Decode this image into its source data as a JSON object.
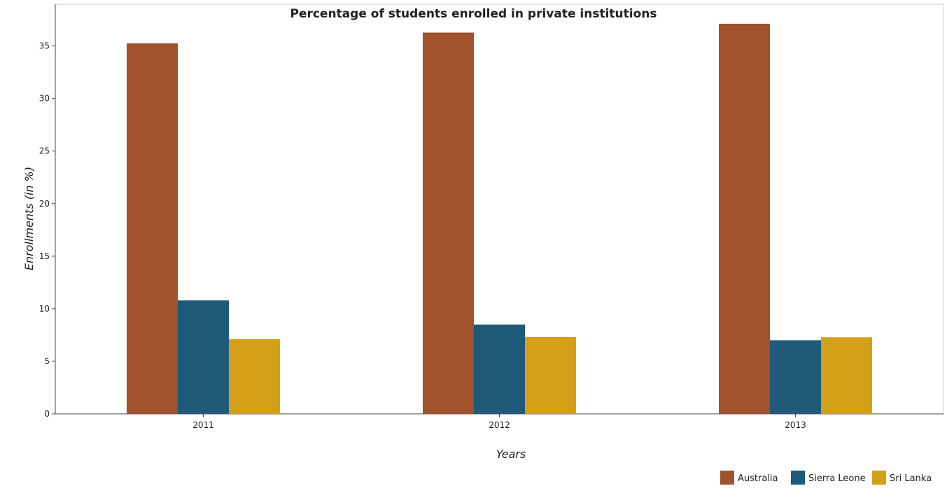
{
  "chart_data": {
    "type": "bar",
    "title": "Percentage of students enrolled in private institutions",
    "xlabel": "Years",
    "ylabel": "Enrollments (in %)",
    "categories": [
      "2011",
      "2012",
      "2013"
    ],
    "series": [
      {
        "name": "Australia",
        "color": "#a0522d",
        "values": [
          35.25,
          36.27,
          37.11
        ]
      },
      {
        "name": "Sierra Leone",
        "color": "#1f5a7a",
        "values": [
          10.8,
          8.49,
          6.99
        ]
      },
      {
        "name": "Sri Lanka",
        "color": "#d4a017",
        "values": [
          7.12,
          7.33,
          7.3
        ]
      }
    ],
    "ylim": [
      0,
      38.97
    ],
    "yticks": [
      0,
      5,
      10,
      15,
      20,
      25,
      30,
      35
    ],
    "grid": false,
    "legend_position": "bottom-right"
  }
}
